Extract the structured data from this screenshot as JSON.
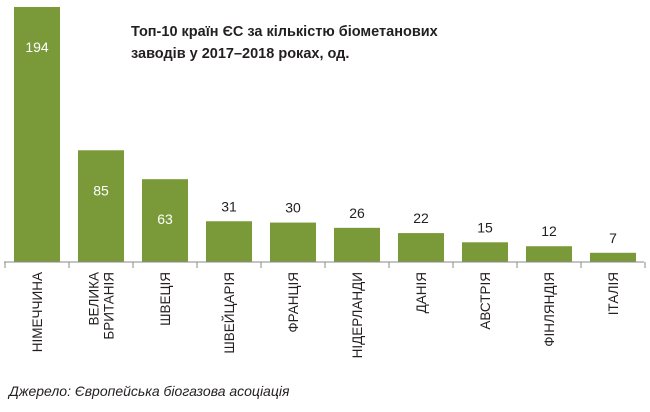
{
  "chart_data": {
    "type": "bar",
    "title_lines": [
      "Топ-10 країн ЄС за кількістю біометанових",
      "заводів у 2017–2018 роках, од."
    ],
    "categories": [
      [
        "НІМЕЧЧИНА"
      ],
      [
        "ВЕЛИКА",
        "БРИТАНІЯ"
      ],
      [
        "ШВЕЦІЯ"
      ],
      [
        "ШВЕЙЦАРІЯ"
      ],
      [
        "ФРАНЦІЯ"
      ],
      [
        "НІДЕРЛАНДИ"
      ],
      [
        "ДАНІЯ"
      ],
      [
        "АВСТРІЯ"
      ],
      [
        "ФІНЛЯНДІЯ"
      ],
      [
        "ІТАЛІЯ"
      ]
    ],
    "values": [
      194,
      85,
      63,
      31,
      30,
      26,
      22,
      15,
      12,
      7
    ],
    "ylim": [
      0,
      194
    ],
    "grid": false,
    "bar_color": "#7a9a3a"
  },
  "source": "Джерело: Європейська біогазова асоціація"
}
